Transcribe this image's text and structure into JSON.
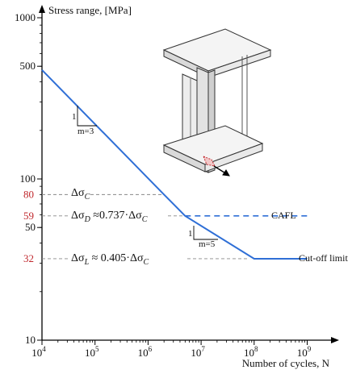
{
  "chart_data": {
    "type": "line",
    "ylabel": "Stress range, [MPa]",
    "xlabel": "Number of cycles, N",
    "xscale": "log",
    "yscale": "log",
    "xlim": [
      10000,
      2000000000
    ],
    "ylim": [
      10,
      1000
    ],
    "x_ticks": [
      "10",
      "10",
      "10",
      "10",
      "10",
      "10"
    ],
    "x_tick_exponents": [
      "4",
      "5",
      "6",
      "7",
      "8",
      "9"
    ],
    "x_tick_values": [
      10000,
      100000,
      1000000,
      10000000,
      100000000,
      1000000000
    ],
    "y_ticks_black": [
      "1000",
      "500",
      "100",
      "50",
      "10"
    ],
    "y_ticks_black_values": [
      1000,
      500,
      100,
      50,
      10
    ],
    "y_ticks_red": [
      "80",
      "59",
      "32"
    ],
    "y_ticks_red_values": [
      80,
      59,
      32
    ],
    "series": [
      {
        "values": [
          [
            10000,
            474
          ],
          [
            2000000,
            80
          ],
          [
            5000000,
            59
          ],
          [
            100000000,
            32
          ],
          [
            1000000000,
            32
          ]
        ]
      },
      {
        "style": "dashed",
        "values": [
          [
            5000000,
            59
          ],
          [
            1000000000,
            59
          ]
        ]
      }
    ],
    "reference_lines": [
      80,
      59,
      32
    ],
    "annotations": {
      "delta_c_sym": "Δσ",
      "delta_c_sub": "C",
      "delta_d_sym": "Δσ",
      "delta_d_sub": "D",
      "delta_d_rel": " ≈0.737·Δσ",
      "delta_d_rel_sub": "C",
      "delta_l_sym": "Δσ",
      "delta_l_sub": "L",
      "delta_l_rel": " ≈ 0.405·Δσ",
      "delta_l_rel_sub": "C",
      "cafl": "CAFL",
      "cutoff": "Cut-off limit",
      "slope1_rise": "1",
      "slope1_label": "m=3",
      "slope2_rise": "1",
      "slope2_label": "m=5"
    },
    "colors": {
      "line": "#2f6fd6",
      "red_ticks": "#c0282d",
      "grid": "#888888",
      "axis": "#000000"
    }
  }
}
